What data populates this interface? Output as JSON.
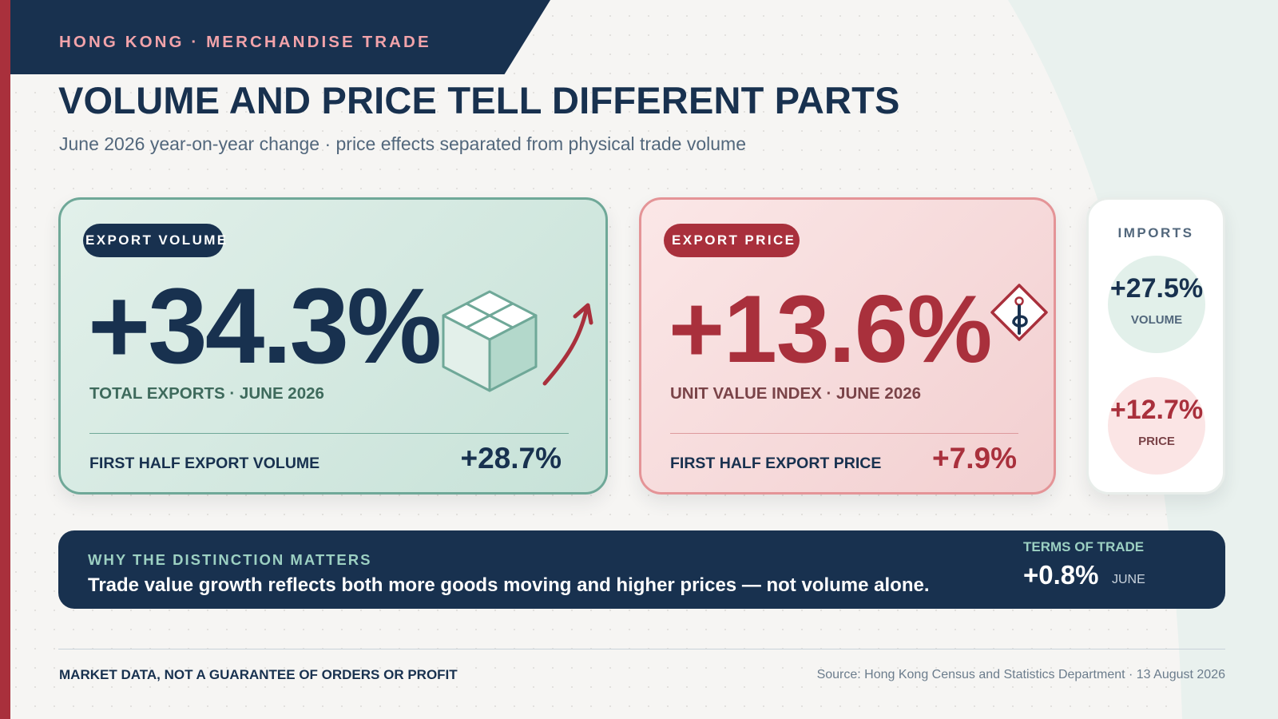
{
  "header": {
    "kicker": "HONG KONG · MERCHANDISE TRADE",
    "title": "VOLUME AND PRICE TELL DIFFERENT PARTS",
    "subtitle": "June 2026 year-on-year change · price effects separated from physical trade volume"
  },
  "export_volume": {
    "pill": "EXPORT VOLUME",
    "value": "+34.3%",
    "caption": "TOTAL EXPORTS · JUNE 2026",
    "footer_label": "FIRST HALF EXPORT VOLUME",
    "footer_value": "+28.7%",
    "icons": [
      "box-icon",
      "up-arrow-icon"
    ]
  },
  "export_price": {
    "pill": "EXPORT PRICE",
    "value": "+13.6%",
    "caption": "UNIT VALUE INDEX · JUNE 2026",
    "footer_label": "FIRST HALF EXPORT PRICE",
    "footer_value": "+7.9%",
    "icons": [
      "price-tag-icon"
    ]
  },
  "imports": {
    "title": "IMPORTS",
    "volume_value": "+27.5%",
    "volume_label": "VOLUME",
    "price_value": "+12.7%",
    "price_label": "PRICE"
  },
  "banner": {
    "kicker": "WHY THE DISTINCTION MATTERS",
    "text": "Trade value growth reflects both more goods moving and higher prices — not volume alone.",
    "terms_label": "TERMS OF TRADE",
    "terms_value": "+0.8%",
    "terms_period": "JUNE"
  },
  "footer": {
    "disclaimer": "MARKET DATA, NOT A GUARANTEE OF ORDERS OR PROFIT",
    "source": "Source: Hong Kong Census and Statistics Department · 13 August 2026"
  },
  "colors": {
    "navy": "#18314f",
    "red": "#a9303c",
    "green": "#6fa898",
    "pink": "#f2a3aa",
    "mint": "#9cd0c2"
  }
}
